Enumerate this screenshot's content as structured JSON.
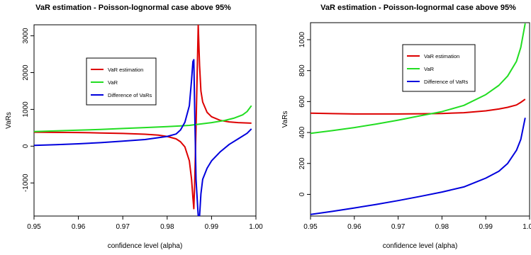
{
  "chart_data": [
    {
      "type": "line",
      "title": "VaR estimation - Poisson-lognormal case above 95%",
      "xlabel": "confidence level (alpha)",
      "ylabel": "VaRs",
      "xlim": [
        0.95,
        1.0
      ],
      "ylim": [
        -1900,
        3300
      ],
      "xticks": [
        "0.95",
        "0.96",
        "0.97",
        "0.98",
        "0.99",
        "1.00"
      ],
      "yticks": [
        "-1000",
        "0",
        "1000",
        "2000",
        "3000"
      ],
      "grid": false,
      "legend": "upper-left-center",
      "series": [
        {
          "name": "VaR estimation",
          "color": "#dd0000",
          "x": [
            0.95,
            0.955,
            0.96,
            0.965,
            0.97,
            0.975,
            0.978,
            0.98,
            0.982,
            0.983,
            0.984,
            0.985,
            0.9855,
            0.9858,
            0.986,
            0.9862,
            0.9865,
            0.987,
            0.9873,
            0.9876,
            0.988,
            0.989,
            0.99,
            0.992,
            0.994,
            0.996,
            0.998,
            0.999
          ],
          "values": [
            380,
            375,
            370,
            360,
            345,
            325,
            300,
            265,
            200,
            120,
            -20,
            -400,
            -900,
            -1400,
            -1700,
            -1000,
            500,
            3300,
            2200,
            1500,
            1200,
            920,
            800,
            700,
            660,
            640,
            630,
            625
          ]
        },
        {
          "name": "VaR",
          "color": "#22dd22",
          "x": [
            0.95,
            0.955,
            0.96,
            0.965,
            0.97,
            0.975,
            0.98,
            0.985,
            0.99,
            0.993,
            0.995,
            0.997,
            0.998,
            0.999
          ],
          "values": [
            395,
            415,
            435,
            455,
            480,
            505,
            530,
            565,
            640,
            700,
            760,
            850,
            940,
            1100
          ]
        },
        {
          "name": "Difference of VaRs",
          "color": "#0000dd",
          "x": [
            0.95,
            0.955,
            0.96,
            0.965,
            0.97,
            0.975,
            0.978,
            0.98,
            0.982,
            0.983,
            0.984,
            0.985,
            0.9855,
            0.9858,
            0.986,
            0.9862,
            0.9865,
            0.987,
            0.9873,
            0.9876,
            0.988,
            0.989,
            0.99,
            0.992,
            0.994,
            0.996,
            0.998,
            0.999
          ],
          "values": [
            20,
            40,
            65,
            95,
            135,
            180,
            230,
            265,
            330,
            440,
            650,
            1100,
            1800,
            2300,
            2350,
            1000,
            -900,
            -1900,
            -1900,
            -1300,
            -900,
            -600,
            -400,
            -150,
            50,
            200,
            350,
            470
          ]
        }
      ]
    },
    {
      "type": "line",
      "title": "VaR estimation - Poisson-lognormal case above 95%",
      "xlabel": "confidence level (alpha)",
      "ylabel": "VaRs",
      "xlim": [
        0.95,
        1.0
      ],
      "ylim": [
        -140,
        1110
      ],
      "xticks": [
        "0.95",
        "0.96",
        "0.97",
        "0.98",
        "0.99",
        "1.00"
      ],
      "yticks": [
        "0",
        "200",
        "400",
        "600",
        "800",
        "1000"
      ],
      "grid": false,
      "legend": "top-center-right",
      "series": [
        {
          "name": "VaR estimation",
          "color": "#dd0000",
          "x": [
            0.95,
            0.955,
            0.96,
            0.965,
            0.97,
            0.975,
            0.98,
            0.985,
            0.99,
            0.993,
            0.995,
            0.997,
            0.998,
            0.999
          ],
          "values": [
            525,
            522,
            520,
            520,
            520,
            521,
            523,
            528,
            540,
            552,
            563,
            578,
            595,
            615
          ]
        },
        {
          "name": "VaR",
          "color": "#22dd22",
          "x": [
            0.95,
            0.955,
            0.96,
            0.965,
            0.97,
            0.975,
            0.98,
            0.985,
            0.99,
            0.993,
            0.995,
            0.997,
            0.998,
            0.999
          ],
          "values": [
            395,
            412,
            432,
            455,
            480,
            508,
            535,
            575,
            645,
            705,
            765,
            860,
            950,
            1105
          ]
        },
        {
          "name": "Difference of VaRs",
          "color": "#0000dd",
          "x": [
            0.95,
            0.955,
            0.96,
            0.965,
            0.97,
            0.975,
            0.98,
            0.985,
            0.99,
            0.993,
            0.995,
            0.997,
            0.998,
            0.999
          ],
          "values": [
            -130,
            -110,
            -88,
            -65,
            -40,
            -13,
            15,
            48,
            105,
            150,
            200,
            285,
            355,
            495
          ]
        }
      ]
    }
  ]
}
